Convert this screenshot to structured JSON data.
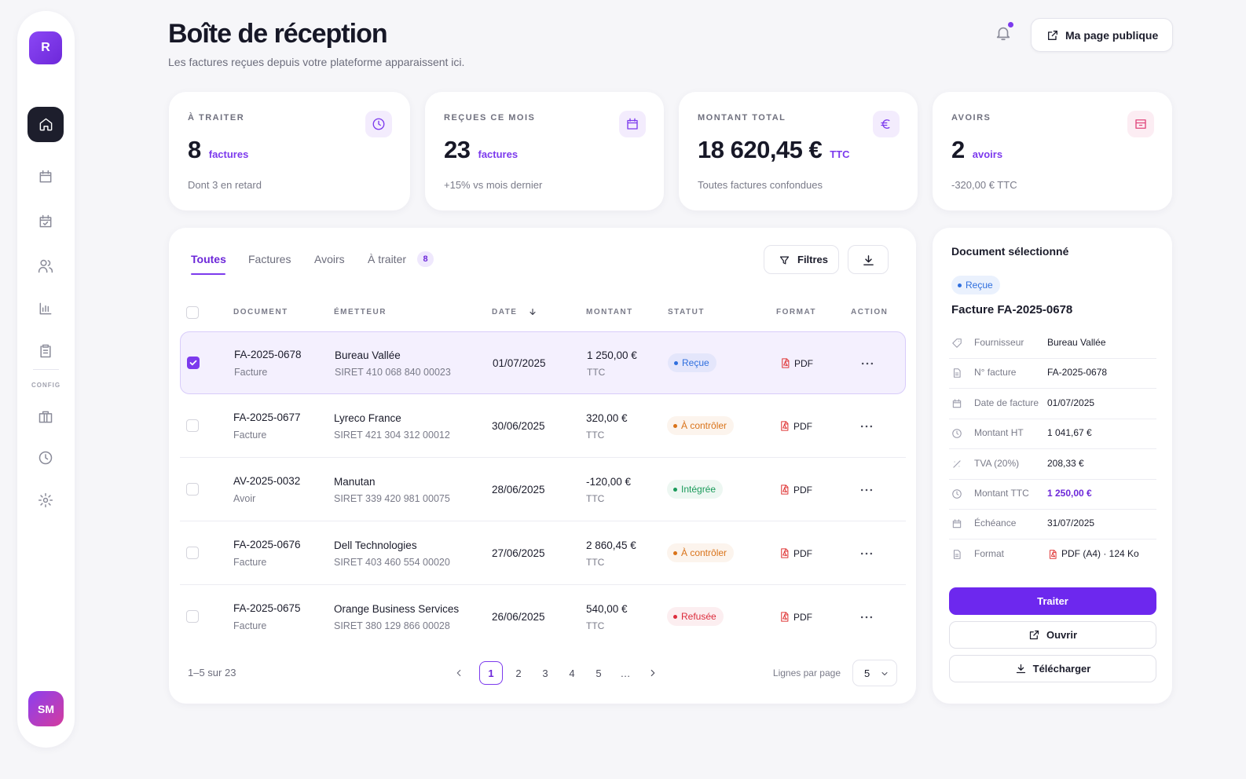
{
  "sidebar": {
    "logo": "R",
    "section_label": "CONFIG",
    "avatar": "SM"
  },
  "header": {
    "title": "Boîte de réception",
    "subtitle": "Les factures reçues depuis votre plateforme apparaissent ici.",
    "public_page_button": "Ma page publique"
  },
  "stats": [
    {
      "label": "À TRAITER",
      "value": "8",
      "unit": "factures",
      "note": "Dont 3 en retard",
      "icon_color": "#7c3aed"
    },
    {
      "label": "REÇUES CE MOIS",
      "value": "23",
      "unit": "factures",
      "note": "+15% vs mois dernier",
      "icon_color": "#7c3aed"
    },
    {
      "label": "MONTANT TOTAL",
      "value": "18 620,45 €",
      "unit": "TTC",
      "note": "Toutes factures confondues",
      "icon_color": "#7c3aed"
    },
    {
      "label": "AVOIRS",
      "value": "2",
      "unit": "avoirs",
      "note": "-320,00 € TTC",
      "icon_color": "#e0457b"
    }
  ],
  "inbox": {
    "tabs": [
      "Toutes",
      "Factures",
      "Avoirs",
      "À traiter"
    ],
    "active_tab": 0,
    "tab_badge": 8,
    "filter_button": "Filtres",
    "columns": [
      "DOCUMENT",
      "ÉMETTEUR",
      "DATE",
      "MONTANT",
      "STATUT",
      "FORMAT",
      "ACTION"
    ],
    "rows": [
      {
        "document": "FA-2025-0678",
        "type": "Facture",
        "emitter": "Bureau Vallée",
        "siret": "SIRET 410 068 840 00023",
        "date": "01/07/2025",
        "amount": "1 250,00 €",
        "tax": "TTC",
        "status": "Reçue",
        "status_color": "#2f6fde",
        "format": "PDF",
        "selected": true
      },
      {
        "document": "FA-2025-0677",
        "type": "Facture",
        "emitter": "Lyreco France",
        "siret": "SIRET 421 304 312 00012",
        "date": "30/06/2025",
        "amount": "320,00 €",
        "tax": "TTC",
        "status": "À contrôler",
        "status_color": "#d9731a",
        "format": "PDF",
        "selected": false
      },
      {
        "document": "AV-2025-0032",
        "type": "Avoir",
        "emitter": "Manutan",
        "siret": "SIRET 339 420 981 00075",
        "date": "28/06/2025",
        "amount": "-120,00 €",
        "tax": "TTC",
        "status": "Intégrée",
        "status_color": "#1a9a5a",
        "format": "PDF",
        "selected": false
      },
      {
        "document": "FA-2025-0676",
        "type": "Facture",
        "emitter": "Dell Technologies",
        "siret": "SIRET 403 460 554 00020",
        "date": "27/06/2025",
        "amount": "2 860,45 €",
        "tax": "TTC",
        "status": "À contrôler",
        "status_color": "#d9731a",
        "format": "PDF",
        "selected": false
      },
      {
        "document": "FA-2025-0675",
        "type": "Facture",
        "emitter": "Orange Business Services",
        "siret": "SIRET 380 129 866 00028",
        "date": "26/06/2025",
        "amount": "540,00 €",
        "tax": "TTC",
        "status": "Refusée",
        "status_color": "#dc2c3c",
        "format": "PDF",
        "selected": false
      }
    ],
    "range": "1–5 sur 23",
    "pages": [
      1,
      2,
      3,
      4,
      5,
      "…"
    ],
    "current_page": 1,
    "rows_per_page_label": "Lignes par page",
    "rows_per_page": 5
  },
  "detail": {
    "title": "Document sélectionné",
    "status": "Reçue",
    "document": "Facture FA-2025-0678",
    "fields": [
      {
        "label": "Fournisseur",
        "value": "Bureau Vallée"
      },
      {
        "label": "N° facture",
        "value": "FA-2025-0678"
      },
      {
        "label": "Date de facture",
        "value": "01/07/2025"
      },
      {
        "label": "Montant HT",
        "value": "1 041,67 €"
      },
      {
        "label": "TVA (20%)",
        "value": "208,33 €"
      },
      {
        "label": "Montant TTC",
        "value": "1 250,00 €",
        "highlight": true
      },
      {
        "label": "Échéance",
        "value": "31/07/2025"
      },
      {
        "label": "Format",
        "value": "PDF (A4) · 124 Ko"
      }
    ],
    "actions": [
      "Traiter",
      "Ouvrir",
      "Télécharger"
    ]
  }
}
